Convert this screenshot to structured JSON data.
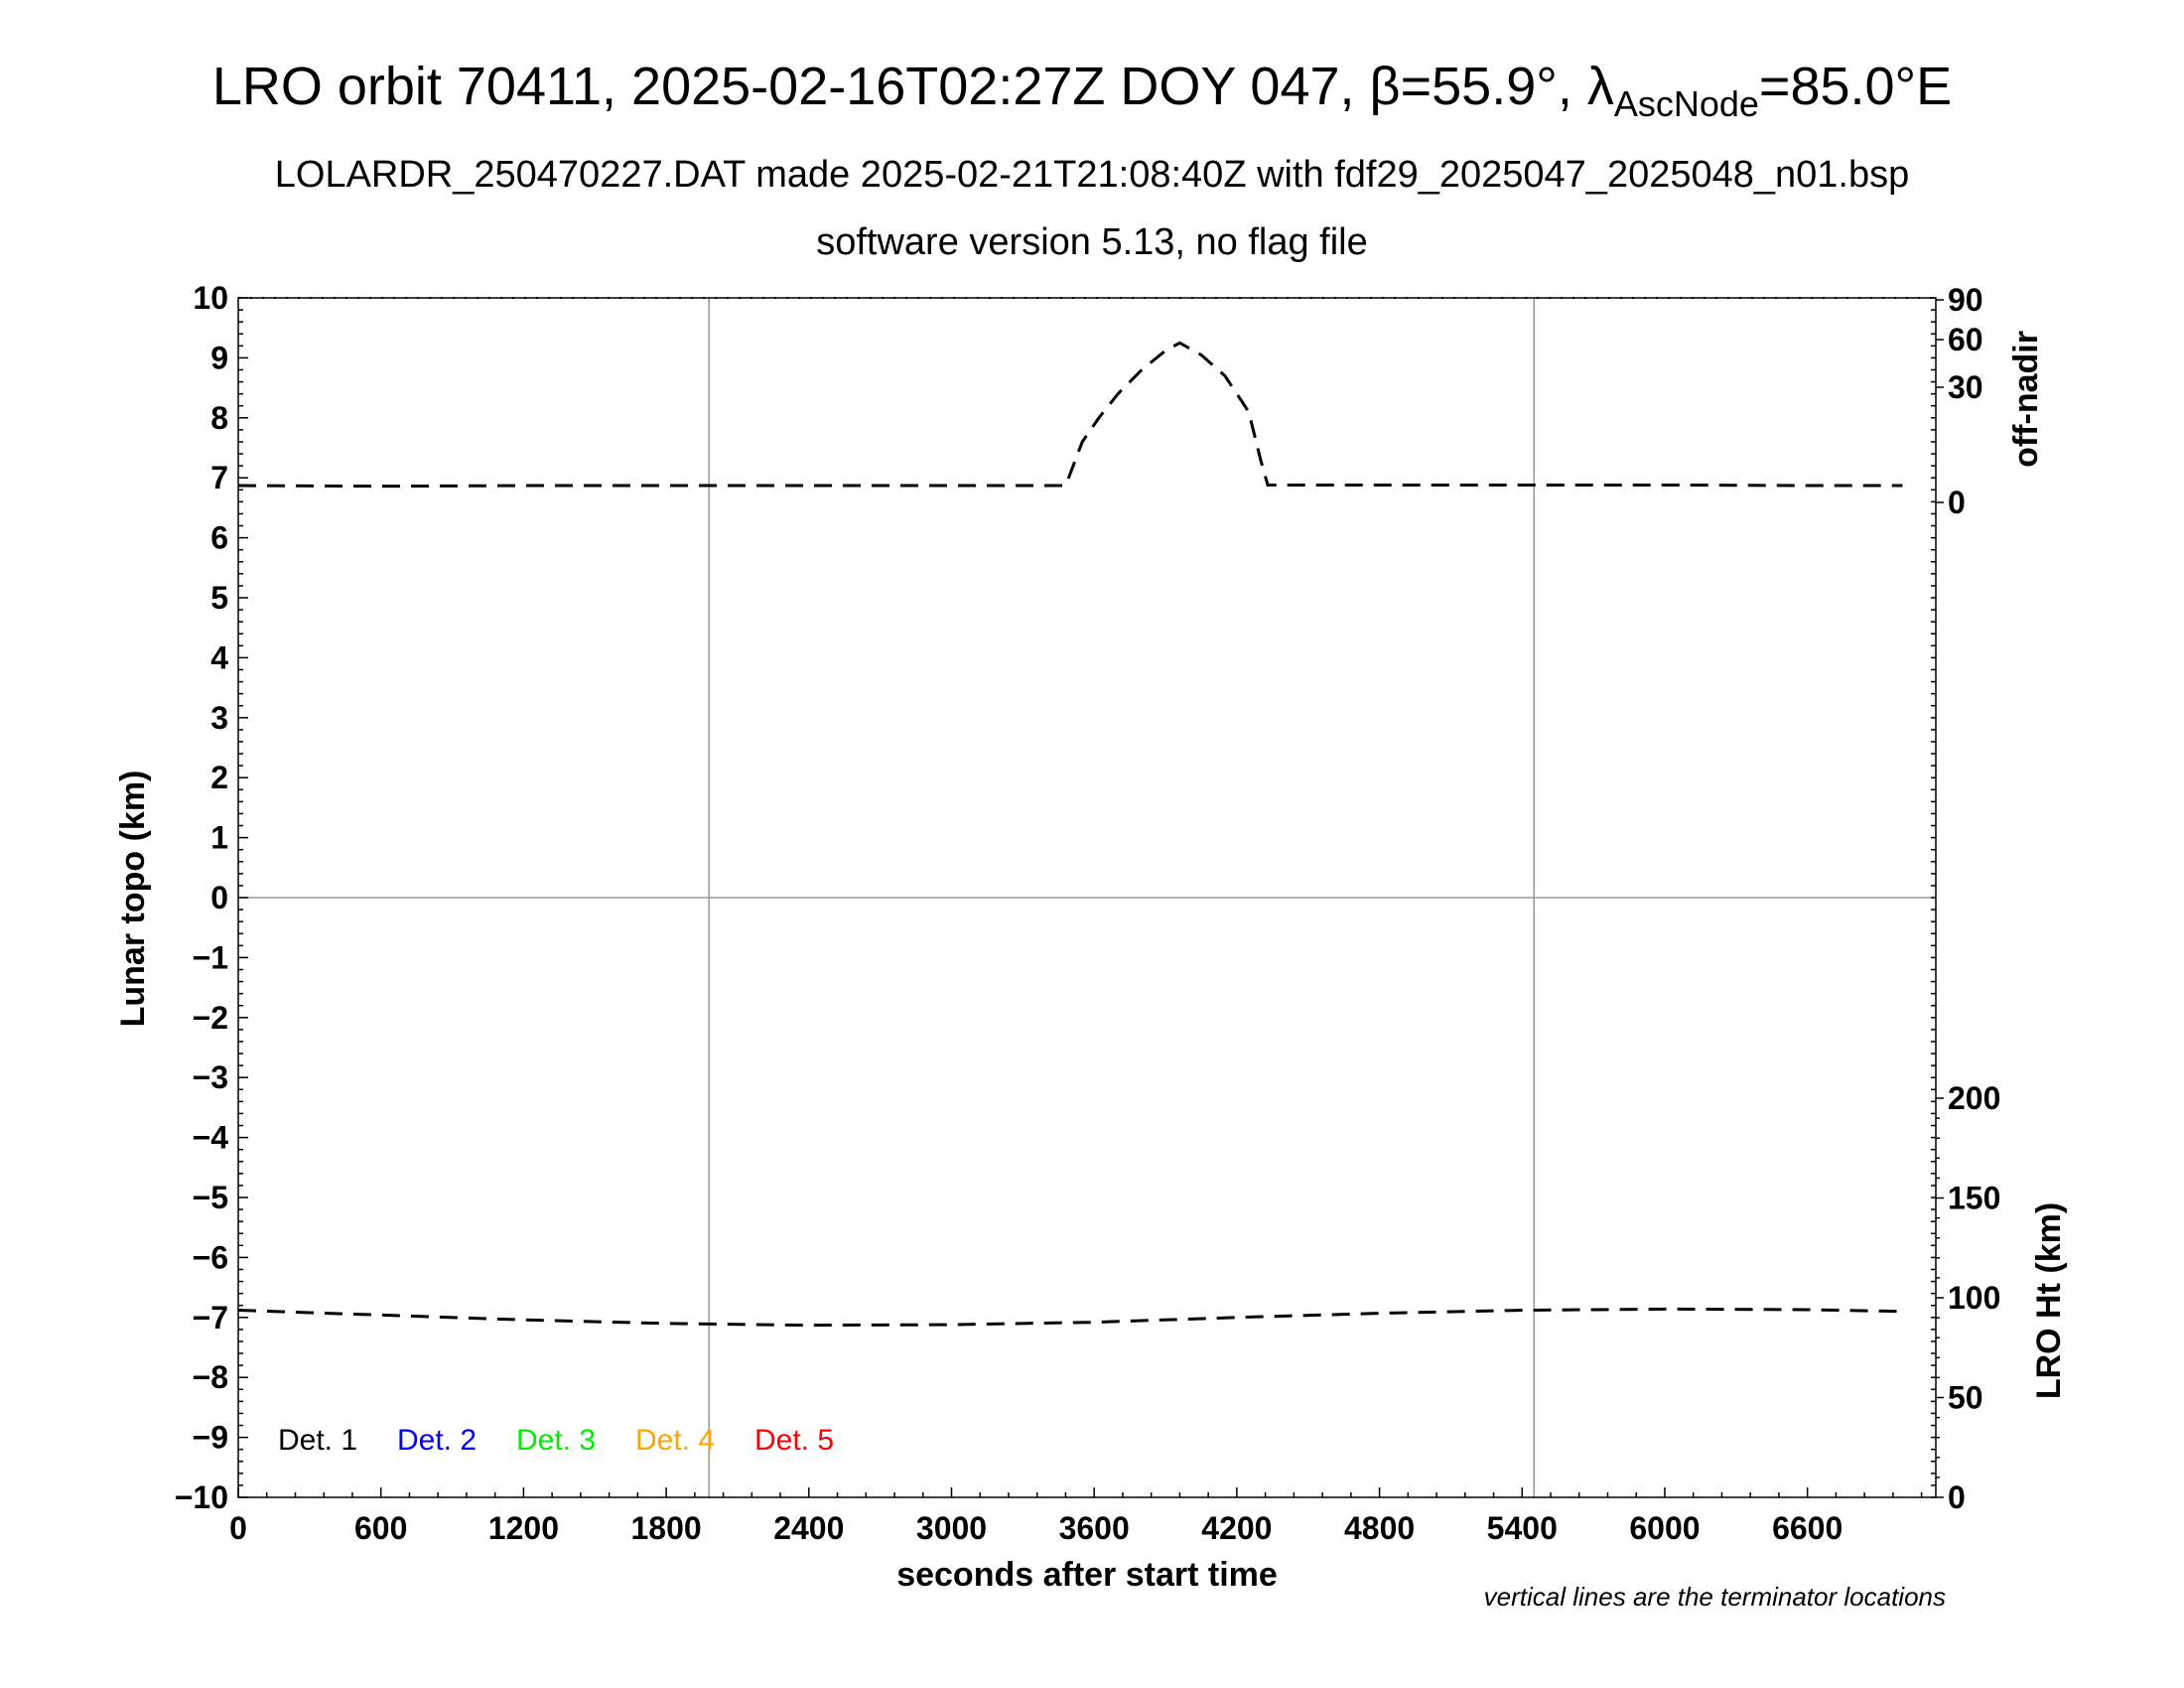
{
  "header": {
    "title_prefix": "LRO orbit 70411, 2025-02-16T02:27Z DOY 047, ",
    "title_beta": "β=55.9°, ",
    "title_lambda": "λ",
    "title_lambda_sub": "AscNode",
    "title_lambda_value": "=85.0°E",
    "subtitle1": "LOLARDR_250470227.DAT made 2025-02-21T21:08:40Z with fdf29_2025047_2025048_n01.bsp",
    "subtitle2": "software version 5.13, no flag file"
  },
  "footnote": "vertical lines are the terminator locations",
  "chart_data": {
    "type": "line",
    "title": "LRO orbit 70411, 2025-02-16T02:27Z DOY 047, β=55.9°, λAscNode=85.0°E",
    "xlabel": "seconds after start time",
    "ylabel": "Lunar topo (km)",
    "y2label_top": "off-nadir",
    "y2label_bottom": "LRO Ht (km)",
    "xlim": [
      0,
      7140
    ],
    "ylim": [
      -10,
      10
    ],
    "x_ticks": [
      "0",
      "600",
      "1200",
      "1800",
      "2400",
      "3000",
      "3600",
      "4200",
      "4800",
      "5400",
      "6000",
      "6600"
    ],
    "x_tick_values": [
      0,
      600,
      1200,
      1800,
      2400,
      3000,
      3600,
      4200,
      4800,
      5400,
      6000,
      6600
    ],
    "y_ticks": [
      "10",
      "9",
      "8",
      "7",
      "6",
      "5",
      "4",
      "3",
      "2",
      "1",
      "0",
      "−1",
      "−2",
      "−3",
      "−4",
      "−5",
      "−6",
      "−7",
      "−8",
      "−9",
      "−10"
    ],
    "y_tick_values": [
      10,
      9,
      8,
      7,
      6,
      5,
      4,
      3,
      2,
      1,
      0,
      -1,
      -2,
      -3,
      -4,
      -5,
      -6,
      -7,
      -8,
      -9,
      -10
    ],
    "off_nadir_ticks": [
      "90",
      "60",
      "30",
      "0"
    ],
    "off_nadir_tick_values": [
      90,
      60,
      30,
      0
    ],
    "lro_ht_ticks": [
      "200",
      "150",
      "100",
      "50",
      "0"
    ],
    "lro_ht_tick_values": [
      200,
      150,
      100,
      50,
      0
    ],
    "terminator_x": [
      1980,
      5450
    ],
    "zero_line_y": 0,
    "legend": [
      {
        "label": "Det. 1",
        "color": "#000000"
      },
      {
        "label": "Det. 2",
        "color": "#0000ff"
      },
      {
        "label": "Det. 3",
        "color": "#00ee00"
      },
      {
        "label": "Det. 4",
        "color": "#ffa500"
      },
      {
        "label": "Det. 5",
        "color": "#ff0000"
      }
    ],
    "series": [
      {
        "label": "off-nadir",
        "x": [
          0,
          600,
          1200,
          1800,
          2400,
          3000,
          3400,
          3480,
          3550,
          3620,
          3700,
          3800,
          3900,
          3960,
          4050,
          4150,
          4250,
          4300,
          4330,
          4800,
          5400,
          6000,
          6600,
          7000
        ],
        "y": [
          6.87,
          6.86,
          6.87,
          6.87,
          6.87,
          6.87,
          6.87,
          6.87,
          7.6,
          8.0,
          8.4,
          8.8,
          9.12,
          9.25,
          9.05,
          8.7,
          8.1,
          7.3,
          6.88,
          6.88,
          6.88,
          6.88,
          6.87,
          6.87
        ]
      },
      {
        "label": "LRO Ht",
        "x": [
          0,
          600,
          1200,
          1800,
          2400,
          3000,
          3600,
          4200,
          4800,
          5400,
          6000,
          6600,
          7000
        ],
        "y": [
          -6.88,
          -6.96,
          -7.04,
          -7.1,
          -7.13,
          -7.12,
          -7.08,
          -7.0,
          -6.93,
          -6.88,
          -6.86,
          -6.87,
          -6.9
        ]
      }
    ]
  }
}
